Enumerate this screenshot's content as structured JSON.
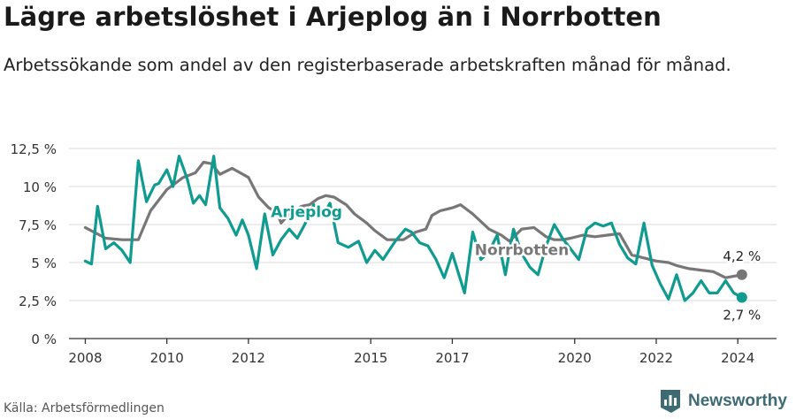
{
  "header": {
    "title": "Lägre arbetslöshet i Arjeplog än i Norrbotten",
    "subtitle": "Arbetssökande som andel av den registerbaserade arbetskraften månad för månad."
  },
  "footer": {
    "source": "Källa: Arbetsförmedlingen",
    "brand": "Newsworthy"
  },
  "colors": {
    "arjeplog": "#0f9b90",
    "norrbotten": "#777777",
    "grid": "#e2e2e2",
    "brand": "#3d6b73"
  },
  "chart_data": {
    "type": "line",
    "title": "Lägre arbetslöshet i Arjeplog än i Norrbotten",
    "subtitle": "Arbetssökande som andel av den registerbaserade arbetskraften månad för månad.",
    "xlabel": "",
    "ylabel": "",
    "x_range": [
      2007.6,
      2024.95
    ],
    "ylim": [
      0,
      12.5
    ],
    "y_ticks": [
      0,
      2.5,
      5,
      7.5,
      10,
      12.5
    ],
    "y_tick_labels": [
      "0 %",
      "2,5 %",
      "5 %",
      "7,5 %",
      "10 %",
      "12,5 %"
    ],
    "x_ticks": [
      2008,
      2010,
      2012,
      2015,
      2017,
      2020,
      2022,
      2024
    ],
    "x_tick_labels": [
      "2008",
      "2010",
      "2012",
      "2015",
      "2017",
      "2020",
      "2022",
      "2024"
    ],
    "grid": true,
    "series": [
      {
        "name": "Norrbotten",
        "label": "Norrbotten",
        "end_label": "4,2 %",
        "color": "#777777",
        "x": [
          2008.0,
          2008.5,
          2008.9,
          2009.3,
          2009.6,
          2009.8,
          2010.0,
          2010.2,
          2010.4,
          2010.7,
          2010.9,
          2011.1,
          2011.3,
          2011.6,
          2012.0,
          2012.25,
          2012.5,
          2012.7,
          2012.8,
          2013.0,
          2013.3,
          2013.5,
          2013.7,
          2013.9,
          2014.1,
          2014.4,
          2014.6,
          2014.9,
          2015.1,
          2015.4,
          2015.8,
          2016.1,
          2016.35,
          2016.5,
          2016.7,
          2017.0,
          2017.2,
          2017.5,
          2017.9,
          2018.2,
          2018.4,
          2018.7,
          2019.0,
          2019.3,
          2019.5,
          2019.7,
          2019.9,
          2020.2,
          2020.5,
          2020.8,
          2021.1,
          2021.4,
          2021.7,
          2022.0,
          2022.3,
          2022.5,
          2022.8,
          2023.1,
          2023.4,
          2023.7,
          2024.1
        ],
        "values": [
          7.3,
          6.6,
          6.5,
          6.5,
          8.4,
          9.1,
          9.8,
          10.2,
          10.6,
          10.9,
          11.6,
          11.5,
          10.8,
          11.2,
          10.6,
          9.3,
          8.6,
          8.3,
          7.6,
          8.2,
          8.7,
          8.8,
          9.2,
          9.4,
          9.3,
          8.8,
          8.2,
          7.6,
          7.1,
          6.5,
          6.5,
          7.0,
          7.2,
          8.1,
          8.4,
          8.6,
          8.8,
          8.2,
          7.2,
          6.8,
          6.4,
          7.2,
          7.3,
          6.7,
          6.5,
          6.5,
          6.6,
          6.8,
          6.7,
          6.8,
          6.9,
          5.5,
          5.3,
          5.1,
          5.0,
          4.8,
          4.6,
          4.5,
          4.4,
          4.0,
          4.2
        ]
      },
      {
        "name": "Arjeplog",
        "label": "Arjeplog",
        "end_label": "2,7 %",
        "color": "#0f9b90",
        "x": [
          2008.0,
          2008.15,
          2008.3,
          2008.5,
          2008.7,
          2008.9,
          2009.1,
          2009.3,
          2009.5,
          2009.7,
          2009.8,
          2010.0,
          2010.15,
          2010.3,
          2010.5,
          2010.65,
          2010.8,
          2010.95,
          2011.15,
          2011.3,
          2011.5,
          2011.7,
          2011.85,
          2012.0,
          2012.2,
          2012.4,
          2012.6,
          2012.8,
          2013.0,
          2013.2,
          2013.4,
          2013.6,
          2013.8,
          2014.0,
          2014.2,
          2014.45,
          2014.7,
          2014.9,
          2015.1,
          2015.3,
          2015.6,
          2015.85,
          2016.0,
          2016.2,
          2016.4,
          2016.6,
          2016.8,
          2017.0,
          2017.15,
          2017.3,
          2017.5,
          2017.7,
          2017.9,
          2018.1,
          2018.3,
          2018.5,
          2018.7,
          2018.9,
          2019.1,
          2019.3,
          2019.5,
          2019.7,
          2019.9,
          2020.1,
          2020.3,
          2020.5,
          2020.7,
          2020.9,
          2021.1,
          2021.3,
          2021.5,
          2021.7,
          2021.9,
          2022.1,
          2022.3,
          2022.5,
          2022.7,
          2022.9,
          2023.1,
          2023.3,
          2023.5,
          2023.7,
          2023.9,
          2024.1
        ],
        "values": [
          5.1,
          4.9,
          8.7,
          5.9,
          6.3,
          5.8,
          5.0,
          11.7,
          9.0,
          10.1,
          10.2,
          11.1,
          10.0,
          12.0,
          10.5,
          8.9,
          9.4,
          8.8,
          12.0,
          8.6,
          7.9,
          6.8,
          7.8,
          6.8,
          4.6,
          8.2,
          5.5,
          6.5,
          7.2,
          6.6,
          7.6,
          8.8,
          8.0,
          8.9,
          6.3,
          6.0,
          6.4,
          5.0,
          5.8,
          5.2,
          6.4,
          7.2,
          7.0,
          6.3,
          6.1,
          5.2,
          4.0,
          5.6,
          4.3,
          3.0,
          7.0,
          5.2,
          5.7,
          6.8,
          4.2,
          7.2,
          5.6,
          4.7,
          4.2,
          6.1,
          7.5,
          6.6,
          5.9,
          5.2,
          7.2,
          7.6,
          7.4,
          7.6,
          6.2,
          5.3,
          4.9,
          7.6,
          4.8,
          3.6,
          2.6,
          4.2,
          2.5,
          3.0,
          3.8,
          3.0,
          3.0,
          3.8,
          3.0,
          2.7
        ]
      }
    ]
  }
}
